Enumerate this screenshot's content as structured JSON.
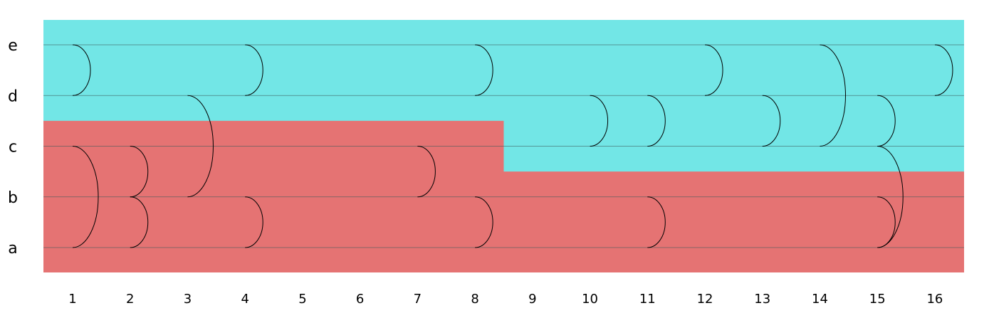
{
  "chart_data": {
    "type": "arc-diagram",
    "rows": [
      "a",
      "b",
      "c",
      "d",
      "e"
    ],
    "columns": [
      "1",
      "2",
      "3",
      "4",
      "5",
      "6",
      "7",
      "8",
      "9",
      "10",
      "11",
      "12",
      "13",
      "14",
      "15",
      "16"
    ],
    "regions": [
      {
        "color": "#72e6e6",
        "cells": "upper"
      },
      {
        "color": "#e57373",
        "cells": "lower",
        "steps": [
          {
            "from_col": 1,
            "to_col": 8,
            "top_row": "c"
          },
          {
            "from_col": 9,
            "to_col": 16,
            "top_row": "b"
          }
        ]
      }
    ],
    "arcs": [
      {
        "col": 1,
        "from": "d",
        "to": "e"
      },
      {
        "col": 1,
        "from": "a",
        "to": "c"
      },
      {
        "col": 2,
        "from": "b",
        "to": "c"
      },
      {
        "col": 2,
        "from": "a",
        "to": "b"
      },
      {
        "col": 3,
        "from": "b",
        "to": "d"
      },
      {
        "col": 4,
        "from": "d",
        "to": "e"
      },
      {
        "col": 4,
        "from": "a",
        "to": "b"
      },
      {
        "col": 7,
        "from": "b",
        "to": "c"
      },
      {
        "col": 8,
        "from": "d",
        "to": "e"
      },
      {
        "col": 8,
        "from": "a",
        "to": "b"
      },
      {
        "col": 10,
        "from": "c",
        "to": "d"
      },
      {
        "col": 11,
        "from": "c",
        "to": "d"
      },
      {
        "col": 11,
        "from": "a",
        "to": "b"
      },
      {
        "col": 12,
        "from": "d",
        "to": "e"
      },
      {
        "col": 13,
        "from": "c",
        "to": "d"
      },
      {
        "col": 14,
        "from": "c",
        "to": "e"
      },
      {
        "col": 15,
        "from": "c",
        "to": "d"
      },
      {
        "col": 15,
        "from": "a",
        "to": "c"
      },
      {
        "col": 15,
        "from": "a",
        "to": "b"
      },
      {
        "col": 16,
        "from": "d",
        "to": "e"
      }
    ]
  }
}
